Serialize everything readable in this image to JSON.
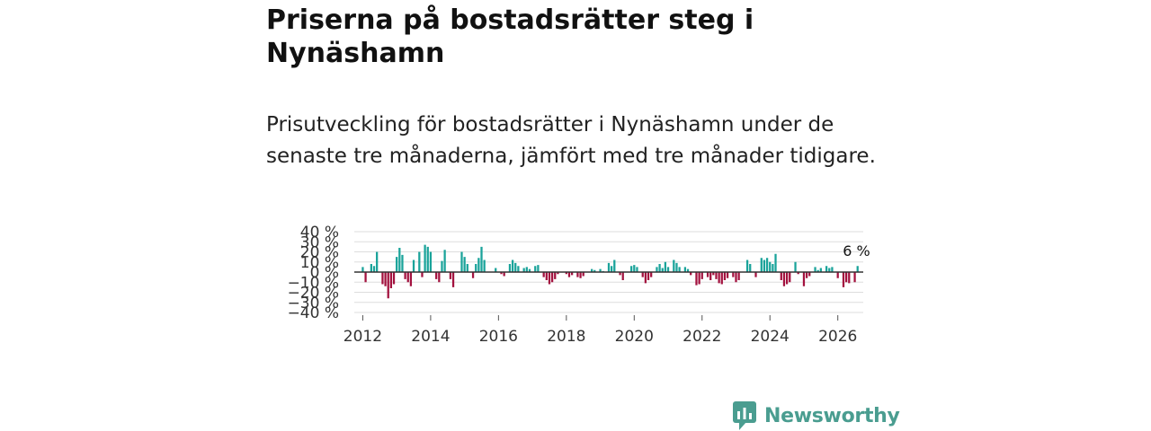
{
  "header": {
    "title": "Priserna på bostadsrätter steg i Nynäshamn",
    "subtitle": "Prisutveckling för bostadsrätter i Nynäshamn under de senaste tre månaderna, jämfört med tre månader tidigare."
  },
  "brand": {
    "name": "Newsworthy"
  },
  "colors": {
    "positive": "#1aa39a",
    "negative": "#a3123f",
    "grid": "#dddddd",
    "zero_line": "#333333",
    "brand": "#4a9d90"
  },
  "chart_data": {
    "type": "bar",
    "title": "Priserna på bostadsrätter steg i Nynäshamn",
    "xlabel": "",
    "ylabel": "",
    "ylim": [
      -40,
      40
    ],
    "y_ticks": [
      40,
      30,
      20,
      10,
      0,
      -10,
      -20,
      -30,
      -40
    ],
    "y_tick_labels": [
      "40 %",
      "30 %",
      "20 %",
      "10 %",
      "0 %",
      "−10 %",
      "−20 %",
      "−30 %",
      "−40 %"
    ],
    "x_range": [
      2011.75,
      2026.75
    ],
    "x_ticks": [
      2012,
      2014,
      2016,
      2018,
      2020,
      2022,
      2024,
      2026
    ],
    "x_tick_labels": [
      "2012",
      "2014",
      "2016",
      "2018",
      "2020",
      "2022",
      "2024",
      "2026"
    ],
    "last_label": "6 %",
    "start": 2012.0,
    "step_months": 1,
    "series": [
      {
        "name": "Prisutveckling",
        "values": [
          5,
          -10,
          0,
          8,
          6,
          20,
          0,
          -12,
          -14,
          -26,
          -16,
          -12,
          15,
          24,
          17,
          -7,
          -10,
          -14,
          12,
          0,
          20,
          -5,
          27,
          25,
          20,
          0,
          -7,
          -10,
          11,
          22,
          0,
          -7,
          -15,
          0,
          0,
          20,
          15,
          8,
          0,
          -6,
          8,
          14,
          25,
          12,
          0,
          0,
          0,
          4,
          0,
          -2,
          -4,
          0,
          8,
          12,
          9,
          6,
          0,
          4,
          5,
          3,
          0,
          6,
          7,
          0,
          -5,
          -8,
          -12,
          -10,
          -7,
          -2,
          0,
          0,
          -2,
          -5,
          -3,
          0,
          -5,
          -6,
          -4,
          0,
          0,
          3,
          2,
          0,
          3,
          1,
          0,
          9,
          6,
          12,
          0,
          -3,
          -8,
          0,
          0,
          6,
          7,
          5,
          0,
          -5,
          -11,
          -8,
          -5,
          0,
          5,
          8,
          4,
          10,
          5,
          0,
          12,
          9,
          5,
          0,
          5,
          3,
          -3,
          0,
          -13,
          -12,
          -7,
          0,
          -5,
          -8,
          -3,
          -7,
          -11,
          -12,
          -8,
          -6,
          0,
          -5,
          -10,
          -8,
          0,
          0,
          12,
          8,
          0,
          -5,
          0,
          14,
          12,
          14,
          10,
          8,
          18,
          0,
          -8,
          -14,
          -12,
          -10,
          0,
          10,
          -2,
          0,
          -14,
          -6,
          -4,
          0,
          5,
          2,
          4,
          0,
          6,
          4,
          5,
          0,
          -6,
          0,
          -15,
          -10,
          -11,
          0,
          -10,
          6
        ]
      }
    ]
  }
}
